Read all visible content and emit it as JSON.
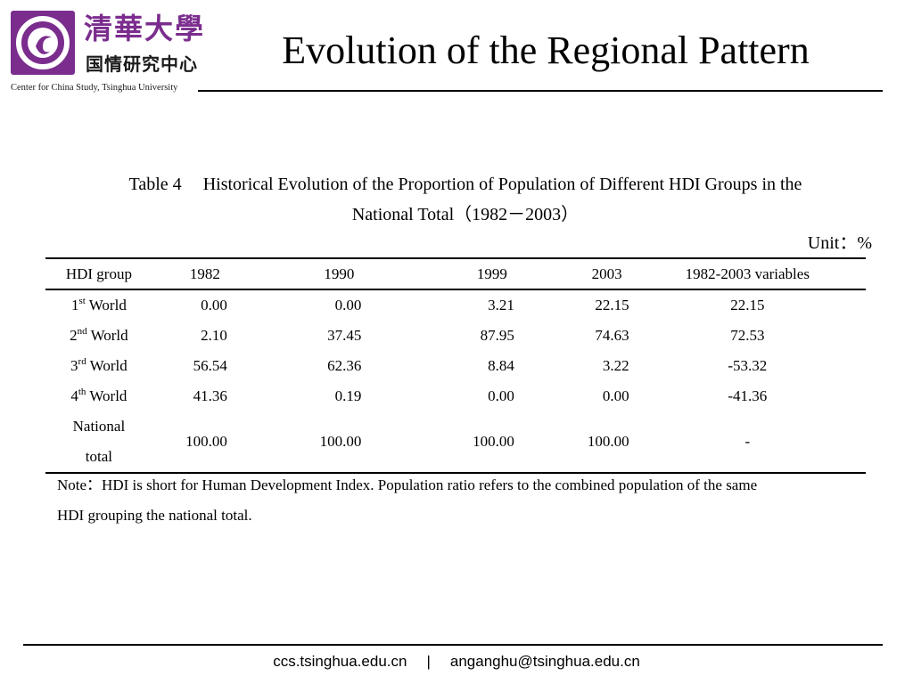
{
  "header": {
    "logo_calligraphy": "清華大學",
    "logo_cn_subtitle": "国情研究中心",
    "logo_en_subtitle": "Center for China Study, Tsinghua University",
    "title": "Evolution of the Regional Pattern"
  },
  "table": {
    "caption_number": "Table 4",
    "caption_text_line1": "Historical Evolution of the Proportion of Population of Different HDI Groups in the",
    "caption_text_line2": "National Total（1982－2003）",
    "unit": "Unit：%",
    "headers": [
      "HDI group",
      "1982",
      "1990",
      "1999",
      "2003",
      "1982-2003 variables"
    ],
    "rows": [
      {
        "group_num": "1",
        "group_sup": "st",
        "group_word": "World",
        "v1982": "0.00",
        "v1990": "0.00",
        "v1999": "3.21",
        "v2003": "22.15",
        "variable": "22.15"
      },
      {
        "group_num": "2",
        "group_sup": "nd",
        "group_word": "World",
        "v1982": "2.10",
        "v1990": "37.45",
        "v1999": "87.95",
        "v2003": "74.63",
        "variable": "72.53"
      },
      {
        "group_num": "3",
        "group_sup": "rd",
        "group_word": "World",
        "v1982": "56.54",
        "v1990": "62.36",
        "v1999": "8.84",
        "v2003": "3.22",
        "variable": "-53.32"
      },
      {
        "group_num": "4",
        "group_sup": "th",
        "group_word": "World",
        "v1982": "41.36",
        "v1990": "0.19",
        "v1999": "0.00",
        "v2003": "0.00",
        "variable": "-41.36"
      }
    ],
    "national": {
      "label_line1": "National",
      "label_line2": "total",
      "v1982": "100.00",
      "v1990": "100.00",
      "v1999": "100.00",
      "v2003": "100.00",
      "variable": "-"
    }
  },
  "note": {
    "line1": "Note：HDI is short for Human Development Index. Population ratio refers to the combined population of the same",
    "line2": "HDI grouping the national total."
  },
  "footer": {
    "website": "ccs.tsinghua.edu.cn",
    "separator": "|",
    "email": "anganghu@tsinghua.edu.cn"
  },
  "colors": {
    "brand_purple": "#7b2d8e"
  },
  "icons": {
    "logo": "tsinghua-seal-icon"
  }
}
